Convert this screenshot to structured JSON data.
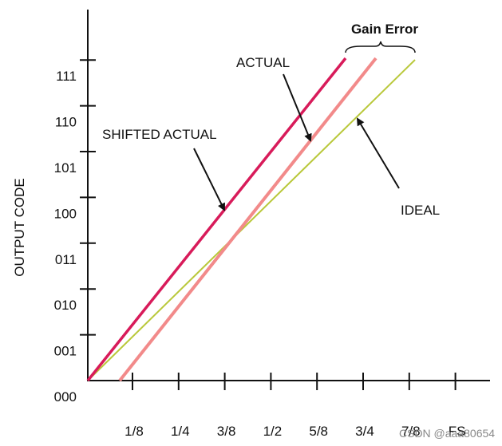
{
  "title": "Gain Error",
  "y_axis": {
    "label": "OUTPUT CODE",
    "codes": [
      "000",
      "001",
      "010",
      "011",
      "100",
      "101",
      "110",
      "111"
    ]
  },
  "x_axis": {
    "labels": [
      "1/8",
      "1/4",
      "3/8",
      "1/2",
      "5/8",
      "3/4",
      "7/8",
      "FS"
    ]
  },
  "lines": [
    {
      "label": "SHIFTED ACTUAL"
    },
    {
      "label": "ACTUAL"
    },
    {
      "label": "IDEAL"
    }
  ],
  "watermark": "CSDN @aaa80654"
}
